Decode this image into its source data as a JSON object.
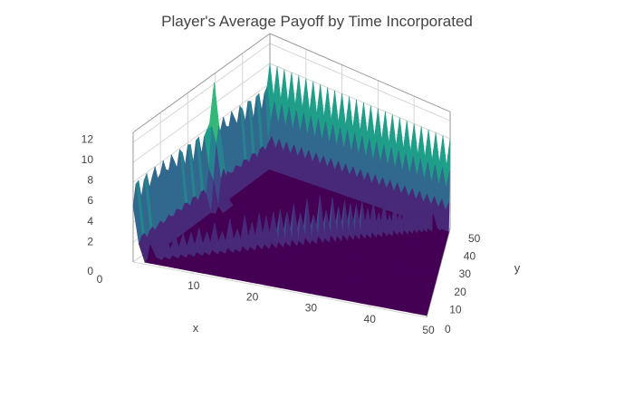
{
  "chart_data": {
    "type": "surface",
    "title": "Player's Average Payoff by Time Incorporated",
    "xlabel": "x",
    "ylabel": "y",
    "zlabel": "",
    "xlim": [
      0,
      50
    ],
    "ylim": [
      0,
      50
    ],
    "zlim": [
      0,
      13
    ],
    "x_ticks": [
      10,
      20,
      30,
      40,
      50
    ],
    "y_ticks": [
      0,
      10,
      20,
      30,
      40,
      50
    ],
    "z_ticks": [
      0,
      2,
      4,
      6,
      8,
      10,
      12
    ],
    "x_zero_label": "0",
    "colorscale": "viridis",
    "colors": [
      "#440154",
      "#482878",
      "#3e4989",
      "#31688e",
      "#26828e",
      "#1f9e89",
      "#35b779",
      "#6ece58",
      "#b5de2b",
      "#fde725"
    ],
    "surface_description_values": {
      "ridge_along_x_equals_y_max": 5,
      "edge_x_equals_0_typical": 8,
      "edge_x_equals_0_spikes": 10,
      "peak_value": 12.6,
      "peak_location": [
        1,
        28
      ]
    }
  }
}
